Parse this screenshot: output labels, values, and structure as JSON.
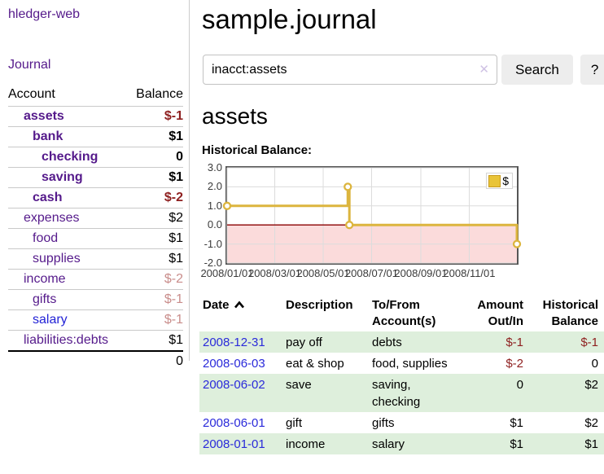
{
  "app": {
    "brand": "hledger-web",
    "nav_journal": "Journal"
  },
  "sidebar": {
    "headers": {
      "account": "Account",
      "balance": "Balance"
    },
    "accounts": [
      {
        "name": "assets",
        "depth": 1,
        "in_query": true,
        "unvisited": false,
        "balance": "$-1"
      },
      {
        "name": "bank",
        "depth": 2,
        "in_query": true,
        "unvisited": false,
        "balance": "$1"
      },
      {
        "name": "checking",
        "depth": 3,
        "in_query": true,
        "unvisited": false,
        "balance": "0"
      },
      {
        "name": "saving",
        "depth": 3,
        "in_query": true,
        "unvisited": false,
        "balance": "$1"
      },
      {
        "name": "cash",
        "depth": 2,
        "in_query": true,
        "unvisited": false,
        "balance": "$-2"
      },
      {
        "name": "expenses",
        "depth": 1,
        "in_query": false,
        "unvisited": false,
        "balance": "$2"
      },
      {
        "name": "food",
        "depth": 2,
        "in_query": false,
        "unvisited": false,
        "balance": "$1"
      },
      {
        "name": "supplies",
        "depth": 2,
        "in_query": false,
        "unvisited": false,
        "balance": "$1"
      },
      {
        "name": "income",
        "depth": 1,
        "in_query": false,
        "unvisited": false,
        "balance": "$-2"
      },
      {
        "name": "gifts",
        "depth": 2,
        "in_query": false,
        "unvisited": false,
        "balance": "$-1"
      },
      {
        "name": "salary",
        "depth": 2,
        "in_query": false,
        "unvisited": true,
        "balance": "$-1"
      },
      {
        "name": "liabilities:debts",
        "depth": 1,
        "in_query": false,
        "unvisited": false,
        "balance": "$1"
      }
    ],
    "total": "0"
  },
  "header": {
    "title": "sample.journal"
  },
  "search": {
    "value": "inacct:assets",
    "clear_icon": "✕",
    "button": "Search",
    "help_button": "?"
  },
  "account_page": {
    "heading": "assets",
    "chart_label": "Historical Balance:"
  },
  "chart_data": {
    "type": "line",
    "step": true,
    "series": [
      {
        "name": "$",
        "color": "#dcb53e",
        "points": [
          [
            "2008-01-01",
            1.0
          ],
          [
            "2008-06-01",
            2.0
          ],
          [
            "2008-06-03",
            0.0
          ],
          [
            "2008-12-31",
            -1.0
          ]
        ]
      }
    ],
    "x_domain": [
      "2008-01-01",
      "2008-12-31"
    ],
    "ylim": [
      -2.0,
      3.0
    ],
    "y_ticks": [
      "3.0",
      "2.0",
      "1.0",
      "0.0",
      "-1.0",
      "-2.0"
    ],
    "x_ticks": [
      {
        "date": "2008-01-01",
        "label": "2008/01/01"
      },
      {
        "date": "2008-03-01",
        "label": "2008/03/01"
      },
      {
        "date": "2008-05-01",
        "label": "2008/05/01"
      },
      {
        "date": "2008-07-01",
        "label": "2008/07/01"
      },
      {
        "date": "2008-09-01",
        "label": "2008/09/01"
      },
      {
        "date": "2008-11-01",
        "label": "2008/11/01"
      }
    ],
    "legend": {
      "label": "$",
      "position": "top-right"
    },
    "grid": true,
    "negative_region_color": "#fbdbdb",
    "zero_line_color": "#8b0000"
  },
  "register": {
    "sort_icon": "chevron-up",
    "headers": {
      "date": "Date",
      "description": "Description",
      "accounts_line1": "To/From",
      "accounts_line2": "Account(s)",
      "amount_line1": "Amount",
      "amount_line2": "Out/In",
      "balance_line1": "Historical",
      "balance_line2": "Balance"
    },
    "rows": [
      {
        "date": "2008-12-31",
        "description": "pay off",
        "accounts": "debts",
        "amount": "$-1",
        "balance": "$-1"
      },
      {
        "date": "2008-06-03",
        "description": "eat & shop",
        "accounts": "food, supplies",
        "amount": "$-2",
        "balance": "0"
      },
      {
        "date": "2008-06-02",
        "description": "save",
        "accounts": "saving, checking",
        "amount": "0",
        "balance": "$2"
      },
      {
        "date": "2008-06-01",
        "description": "gift",
        "accounts": "gifts",
        "amount": "$1",
        "balance": "$2"
      },
      {
        "date": "2008-01-01",
        "description": "income",
        "accounts": "salary",
        "amount": "$1",
        "balance": "$1"
      }
    ]
  }
}
